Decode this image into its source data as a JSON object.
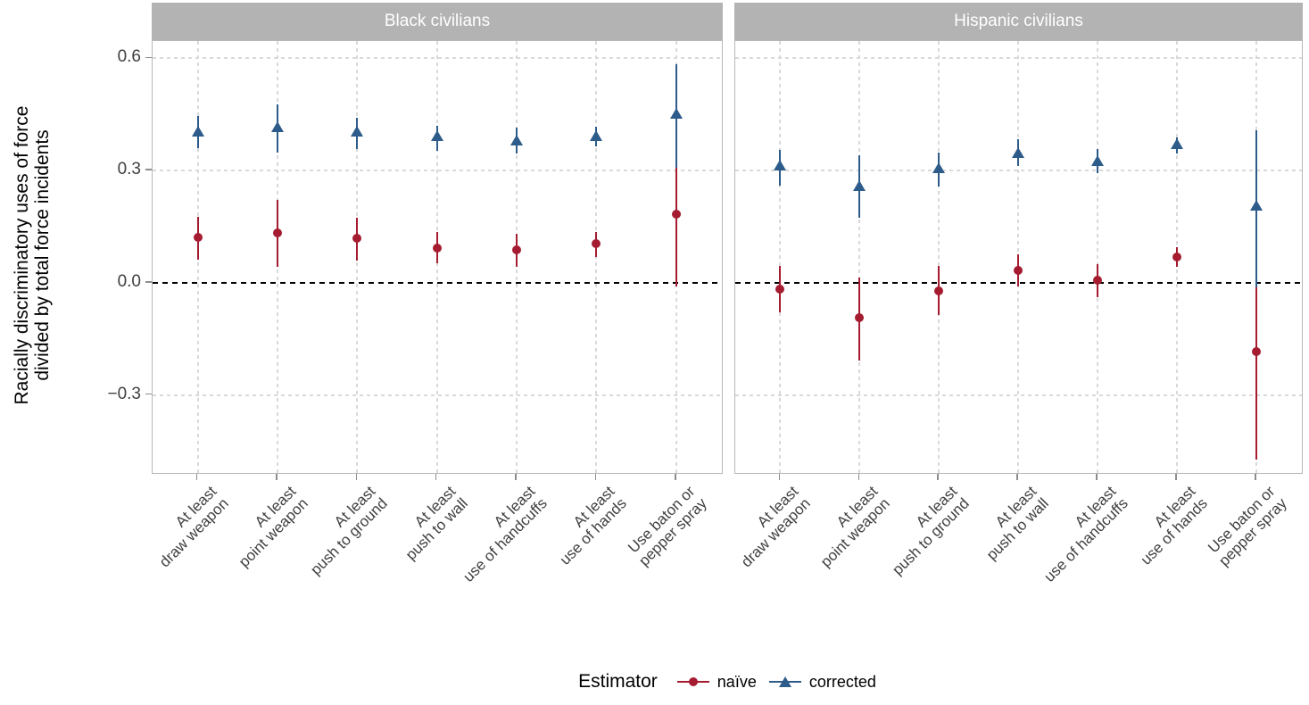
{
  "chart_data": {
    "type": "pointrange",
    "ylabel": "Racially discriminatory uses of force divided by total force incidents",
    "ylabel_lines": [
      "Racially discriminatory uses of force",
      "divided by total force incidents"
    ],
    "categories": [
      "At least draw weapon",
      "At least point weapon",
      "At least push to ground",
      "At least push to wall",
      "At least use of handcuffs",
      "At least use of hands",
      "Use baton or pepper spray"
    ],
    "category_label_lines": [
      [
        "At least",
        "draw weapon"
      ],
      [
        "At least",
        "point weapon"
      ],
      [
        "At least",
        "push to ground"
      ],
      [
        "At least",
        "push to wall"
      ],
      [
        "At least",
        "use of handcuffs"
      ],
      [
        "At least",
        "use of hands"
      ],
      [
        "Use baton or",
        "pepper spray"
      ]
    ],
    "yticks": [
      {
        "value": 0.6,
        "label": "0.6"
      },
      {
        "value": 0.3,
        "label": "0.3"
      },
      {
        "value": 0.0,
        "label": "0.0"
      },
      {
        "value": -0.3,
        "label": "−0.3"
      }
    ],
    "ylim": [
      -0.513,
      0.646
    ],
    "zero_line": 0.0,
    "grid": "dashed",
    "legend": {
      "title": "Estimator",
      "position": "bottom",
      "entries": [
        {
          "label": "naïve",
          "marker": "circle",
          "color": "#a51c30"
        },
        {
          "label": "corrected",
          "marker": "triangle",
          "color": "#2e5c8a"
        }
      ]
    },
    "colors": {
      "naive": "#a51c30",
      "corrected": "#2e5c8a",
      "strip_bg": "#b3b3b3",
      "strip_text": "#ffffff",
      "grid": "#d9d9d9",
      "zero_line": "#000000",
      "axis_text": "#404040",
      "tick": "#8c8c8c",
      "panel_border": "#b8b8b8"
    },
    "panels": [
      {
        "title": "Black civilians",
        "series": [
          {
            "name": "naïve",
            "marker": "circle",
            "points": [
              {
                "est": 0.122,
                "lo": 0.061,
                "hi": 0.177
              },
              {
                "est": 0.134,
                "lo": 0.042,
                "hi": 0.222
              },
              {
                "est": 0.12,
                "lo": 0.06,
                "hi": 0.174
              },
              {
                "est": 0.093,
                "lo": 0.052,
                "hi": 0.135
              },
              {
                "est": 0.087,
                "lo": 0.042,
                "hi": 0.13
              },
              {
                "est": 0.104,
                "lo": 0.069,
                "hi": 0.135
              },
              {
                "est": 0.184,
                "lo": -0.009,
                "hi": 0.363
              }
            ]
          },
          {
            "name": "corrected",
            "marker": "triangle",
            "points": [
              {
                "est": 0.403,
                "lo": 0.359,
                "hi": 0.445
              },
              {
                "est": 0.417,
                "lo": 0.347,
                "hi": 0.476
              },
              {
                "est": 0.405,
                "lo": 0.357,
                "hi": 0.441
              },
              {
                "est": 0.391,
                "lo": 0.352,
                "hi": 0.419
              },
              {
                "est": 0.379,
                "lo": 0.346,
                "hi": 0.415
              },
              {
                "est": 0.391,
                "lo": 0.365,
                "hi": 0.417
              },
              {
                "est": 0.452,
                "lo": 0.308,
                "hi": 0.584
              }
            ]
          }
        ]
      },
      {
        "title": "Hispanic civilians",
        "series": [
          {
            "name": "naïve",
            "marker": "circle",
            "points": [
              {
                "est": -0.017,
                "lo": -0.08,
                "hi": 0.045
              },
              {
                "est": -0.094,
                "lo": -0.208,
                "hi": 0.015
              },
              {
                "est": -0.022,
                "lo": -0.086,
                "hi": 0.044
              },
              {
                "est": 0.034,
                "lo": -0.009,
                "hi": 0.075
              },
              {
                "est": 0.007,
                "lo": -0.038,
                "hi": 0.049
              },
              {
                "est": 0.069,
                "lo": 0.042,
                "hi": 0.095
              },
              {
                "est": -0.185,
                "lo": -0.473,
                "hi": 0.079
              }
            ]
          },
          {
            "name": "corrected",
            "marker": "triangle",
            "points": [
              {
                "est": 0.313,
                "lo": 0.26,
                "hi": 0.354
              },
              {
                "est": 0.258,
                "lo": 0.173,
                "hi": 0.341
              },
              {
                "est": 0.305,
                "lo": 0.258,
                "hi": 0.349
              },
              {
                "est": 0.347,
                "lo": 0.312,
                "hi": 0.383
              },
              {
                "est": 0.325,
                "lo": 0.292,
                "hi": 0.357
              },
              {
                "est": 0.37,
                "lo": 0.346,
                "hi": 0.389
              },
              {
                "est": 0.207,
                "lo": -0.012,
                "hi": 0.407
              }
            ]
          }
        ]
      }
    ]
  }
}
